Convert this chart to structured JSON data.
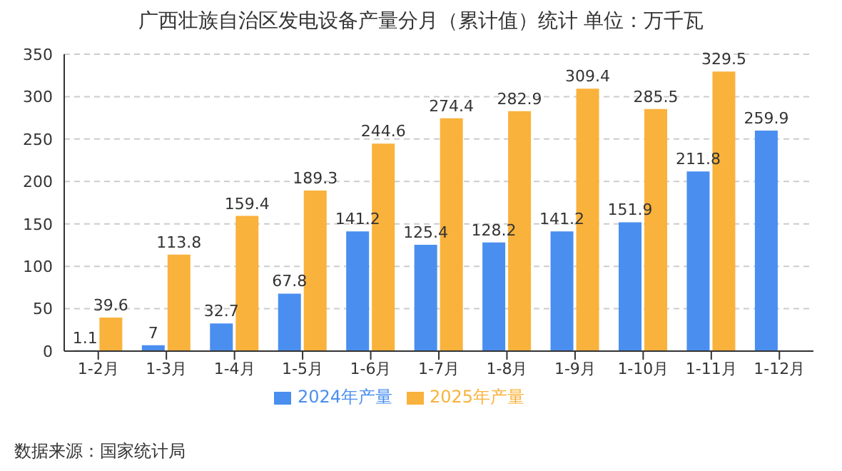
{
  "chart_data": {
    "type": "bar",
    "title": "广西壮族自治区发电设备产量分月（累计值）统计  单位：万千瓦",
    "categories": [
      "1-2月",
      "1-3月",
      "1-4月",
      "1-5月",
      "1-6月",
      "1-7月",
      "1-8月",
      "1-9月",
      "1-10月",
      "1-11月",
      "1-12月"
    ],
    "series": [
      {
        "name": "2024年产量",
        "color": "#4a8ef0",
        "values": [
          1.1,
          7,
          32.7,
          67.8,
          141.2,
          125.4,
          128.2,
          141.2,
          151.9,
          211.8,
          259.9
        ]
      },
      {
        "name": "2025年产量",
        "color": "#f9b23c",
        "values": [
          39.6,
          113.8,
          159.4,
          189.3,
          244.6,
          274.4,
          282.9,
          309.4,
          285.5,
          329.5,
          null
        ]
      }
    ],
    "ylim": [
      0,
      350
    ],
    "yticks": [
      0,
      50,
      100,
      150,
      200,
      250,
      300,
      350
    ],
    "grid": "y",
    "legend": "bottom",
    "data_labels": true,
    "annotations": [
      "数据来源：国家统计局"
    ]
  }
}
